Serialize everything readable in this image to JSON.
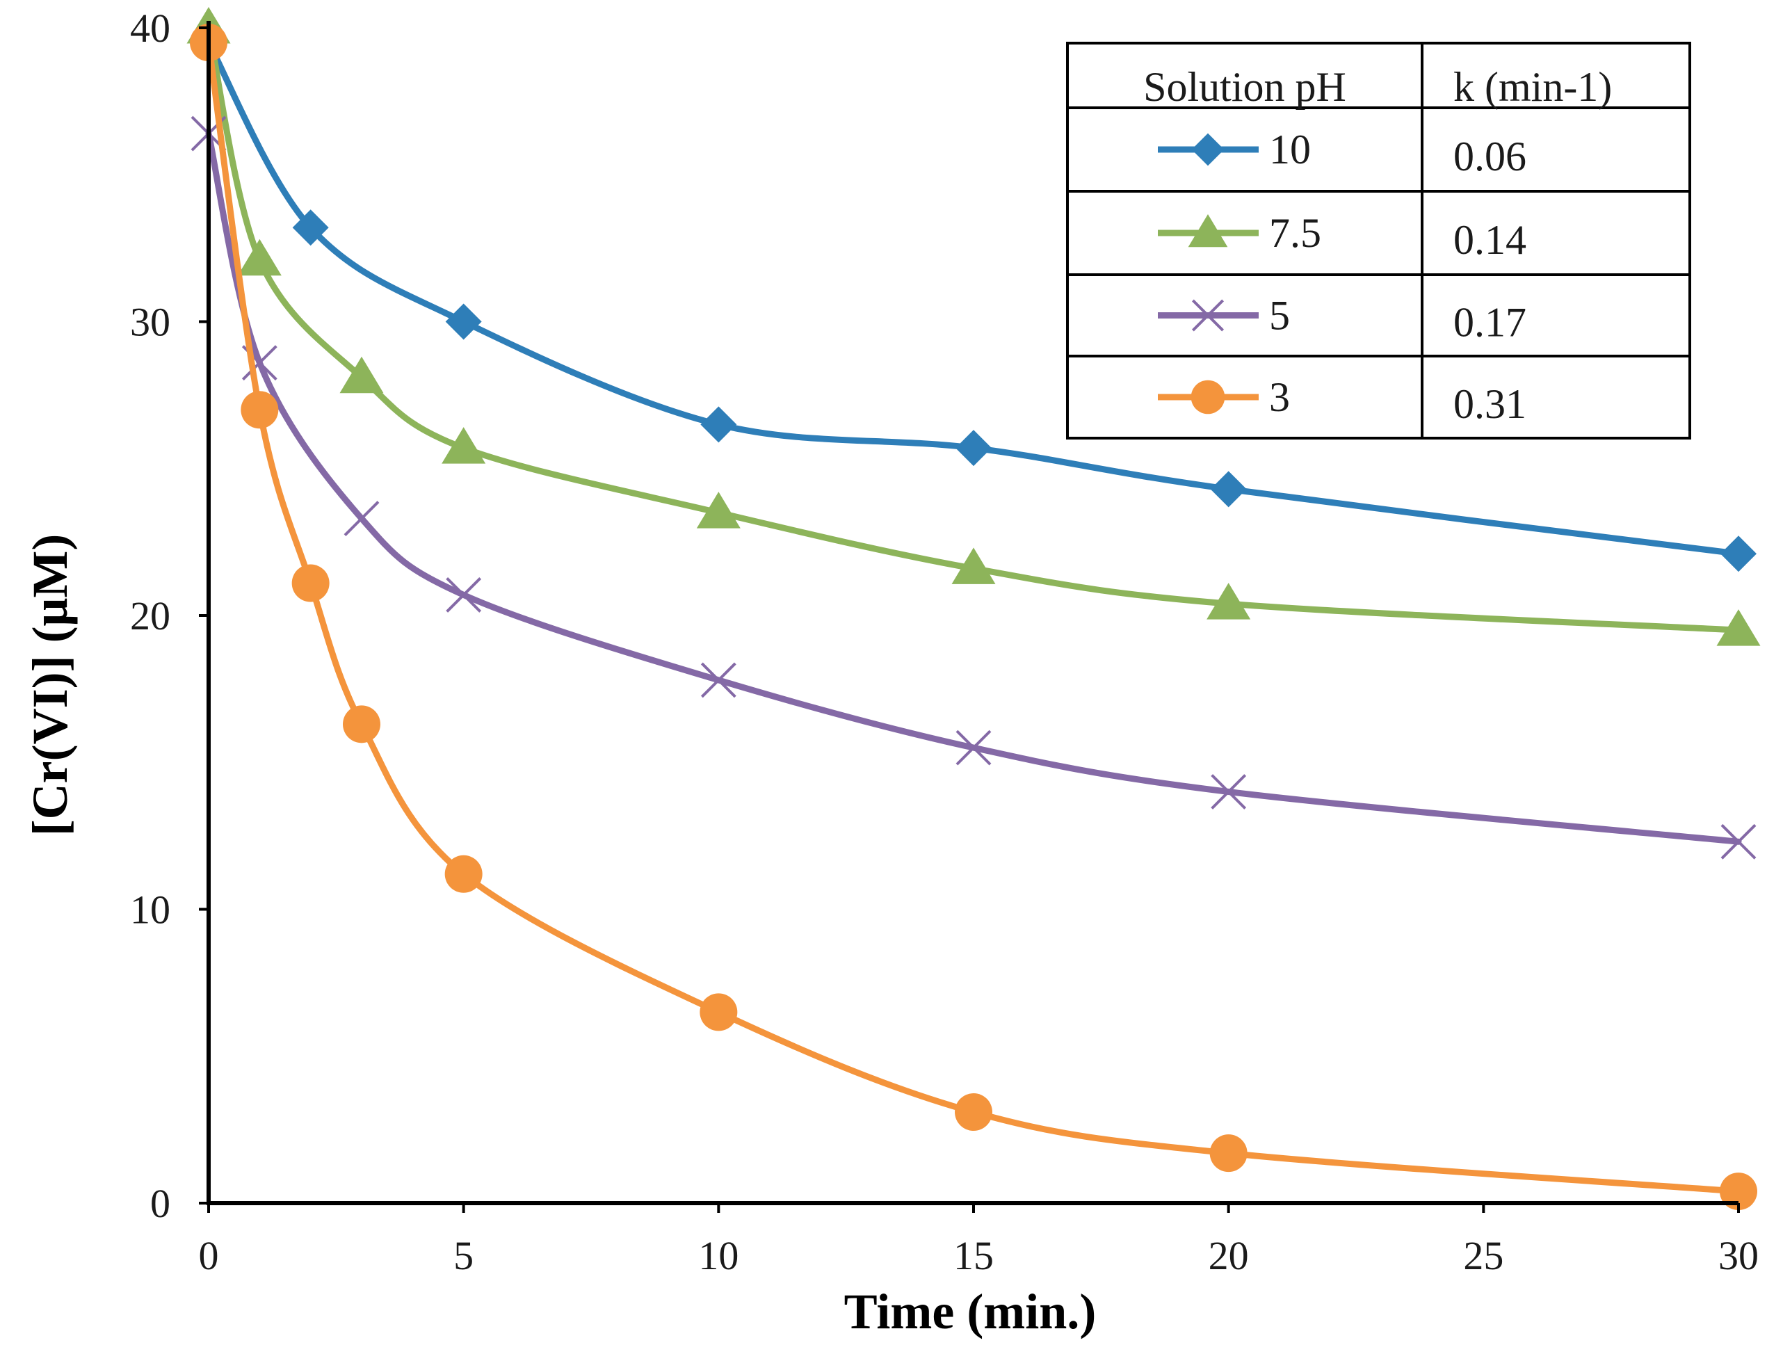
{
  "chart_data": {
    "type": "line",
    "xlabel": "Time (min.)",
    "ylabel": "[Cr(VI)] (μM)",
    "xlim": [
      0,
      30
    ],
    "ylim": [
      0,
      40
    ],
    "x_ticks": [
      "0",
      "5",
      "10",
      "15",
      "20",
      "25",
      "30"
    ],
    "y_ticks": [
      "0",
      "10",
      "20",
      "30",
      "40"
    ],
    "grid": false,
    "legend_placement": "top-right",
    "legend_headers": [
      "Solution pH",
      "k (min-1)"
    ],
    "series": [
      {
        "name": "10",
        "k": "0.06",
        "color": "#2e7eb8",
        "marker": "diamond",
        "x": [
          0,
          2,
          5,
          10,
          15,
          20,
          30
        ],
        "y": [
          39.5,
          33.2,
          30.0,
          26.5,
          25.7,
          24.3,
          22.1
        ]
      },
      {
        "name": "7.5",
        "k": "0.14",
        "color": "#8db45a",
        "marker": "triangle",
        "x": [
          0,
          1,
          3,
          5,
          10,
          15,
          20,
          30
        ],
        "y": [
          40.0,
          32.1,
          28.1,
          25.7,
          23.5,
          21.6,
          20.4,
          19.5
        ]
      },
      {
        "name": "5",
        "k": "0.17",
        "color": "#8469a6",
        "marker": "x",
        "x": [
          0,
          1,
          3,
          5,
          10,
          15,
          20,
          30
        ],
        "y": [
          36.4,
          28.6,
          23.3,
          20.7,
          17.8,
          15.5,
          14.0,
          12.3
        ]
      },
      {
        "name": "3",
        "k": "0.31",
        "color": "#f4943c",
        "marker": "circle",
        "x": [
          0,
          1,
          2,
          3,
          5,
          10,
          15,
          20,
          30
        ],
        "y": [
          39.5,
          27.0,
          21.1,
          16.3,
          11.2,
          6.5,
          3.1,
          1.7,
          0.4
        ]
      }
    ]
  }
}
